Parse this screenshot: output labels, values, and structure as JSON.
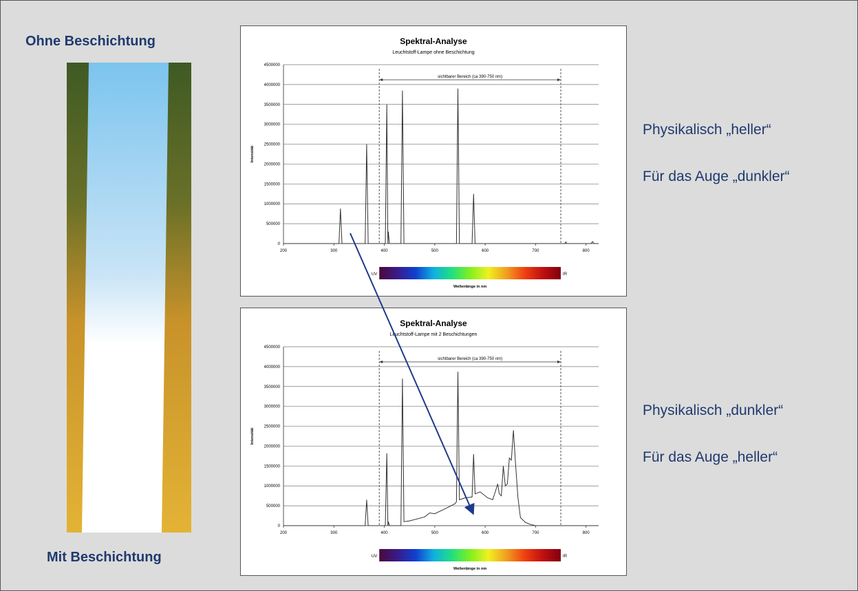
{
  "slide": {
    "top_label": "Ohne Beschichtung",
    "bottom_label": "Mit Beschichtung",
    "notes_top": [
      "Physikalisch „heller“",
      "Für das Auge „dunkler“"
    ],
    "notes_bottom": [
      "Physikalisch „dunkler“",
      "Für das Auge „heller“"
    ]
  },
  "chart_data": [
    {
      "type": "line",
      "title": "Spektral-Analyse",
      "subtitle": "Leuchtstoff-Lampe ohne Beschichtung",
      "x": [
        200,
        310,
        313,
        316,
        362,
        365,
        368,
        402,
        405,
        407,
        408,
        410,
        433,
        436,
        439,
        543,
        546,
        549,
        574,
        577,
        580,
        758,
        760,
        762,
        810,
        813,
        816,
        825
      ],
      "values": [
        0,
        0,
        880000,
        0,
        0,
        2500000,
        0,
        0,
        3500000,
        0,
        300000,
        0,
        0,
        3850000,
        0,
        0,
        3900000,
        0,
        0,
        1250000,
        0,
        0,
        40000,
        0,
        0,
        50000,
        0,
        0
      ],
      "color": "#333333",
      "xlim": [
        200,
        825
      ],
      "xticks": [
        200,
        300,
        400,
        500,
        600,
        700,
        800
      ],
      "ylim": [
        0,
        4500000
      ],
      "yticks": [
        0,
        500000,
        1000000,
        1500000,
        2000000,
        2500000,
        3000000,
        3500000,
        4000000,
        4500000
      ],
      "grid": true,
      "ylabel": "Intensität",
      "xlabel": "Wellenlänge in nm",
      "annotation": "sichtbarer Bereich (ca 390-750 nm)",
      "visible_range": [
        390,
        750
      ],
      "uv_label": "UV",
      "ir_label": "IR"
    },
    {
      "type": "line",
      "title": "Spektral-Analyse",
      "subtitle": "Leuchtstoff-Lampe mit 2 Beschichtungen",
      "x": [
        200,
        362,
        365,
        368,
        402,
        405,
        407,
        408,
        410,
        433,
        436,
        439,
        450,
        480,
        490,
        500,
        520,
        540,
        543,
        546,
        549,
        560,
        574,
        577,
        580,
        590,
        605,
        615,
        620,
        625,
        628,
        632,
        636,
        640,
        644,
        648,
        652,
        656,
        660,
        665,
        670,
        680,
        690,
        700,
        825
      ],
      "values": [
        0,
        0,
        650000,
        0,
        0,
        1820000,
        0,
        100000,
        0,
        0,
        3700000,
        100000,
        120000,
        220000,
        320000,
        300000,
        420000,
        550000,
        600000,
        3870000,
        650000,
        700000,
        720000,
        1800000,
        800000,
        850000,
        700000,
        650000,
        850000,
        1050000,
        800000,
        750000,
        1500000,
        1000000,
        1050000,
        1700000,
        1650000,
        2400000,
        1600000,
        700000,
        200000,
        80000,
        30000,
        0,
        0
      ],
      "color": "#333333",
      "xlim": [
        200,
        825
      ],
      "xticks": [
        200,
        300,
        400,
        500,
        600,
        700,
        800
      ],
      "ylim": [
        0,
        4500000
      ],
      "yticks": [
        0,
        500000,
        1000000,
        1500000,
        2000000,
        2500000,
        3000000,
        3500000,
        4000000,
        4500000
      ],
      "grid": true,
      "ylabel": "Intensität",
      "xlabel": "Wellenlänge in nm",
      "annotation": "sichtbarer Bereich (ca 390-750 nm)",
      "visible_range": [
        390,
        750
      ],
      "uv_label": "UV",
      "ir_label": "IR"
    }
  ]
}
